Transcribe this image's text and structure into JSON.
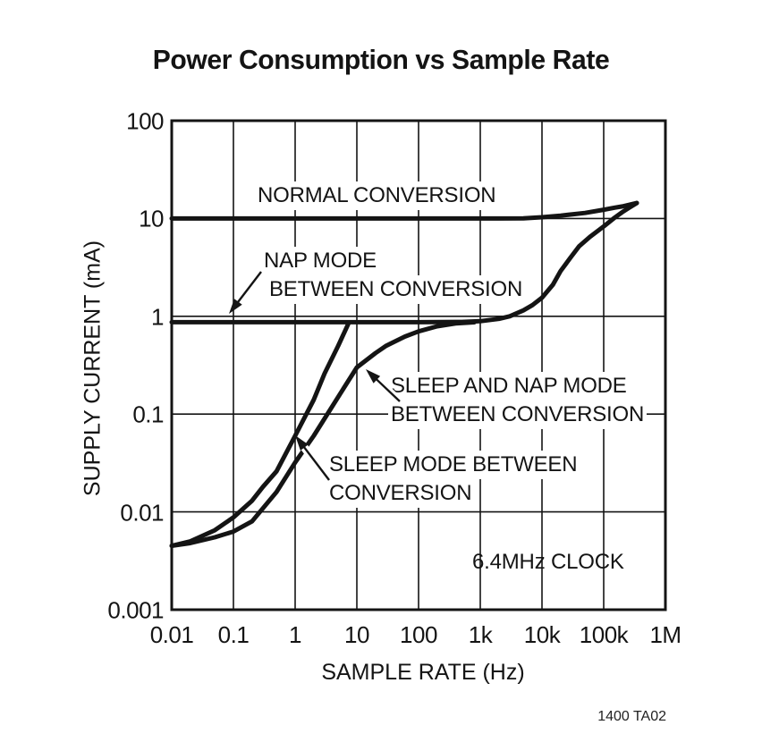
{
  "title": "Power Consumption vs Sample Rate",
  "figure_note": "1400 TA02",
  "colors": {
    "ink": "#141414",
    "background": "#ffffff"
  },
  "axes": {
    "x": {
      "label": "SAMPLE RATE (Hz)",
      "scale": "log",
      "ticks": [
        "0.01",
        "0.1",
        "1",
        "10",
        "100",
        "1k",
        "10k",
        "100k",
        "1M"
      ]
    },
    "y": {
      "label": "SUPPLY CURRENT (mA)",
      "scale": "log",
      "ticks": [
        "100",
        "10",
        "1",
        "0.1",
        "0.01",
        "0.001"
      ]
    }
  },
  "annotations": {
    "normal": {
      "lines": [
        "NORMAL CONVERSION"
      ]
    },
    "nap": {
      "lines": [
        "NAP MODE",
        "BETWEEN CONVERSION"
      ]
    },
    "sleep_nap": {
      "lines": [
        "SLEEP AND NAP MODE",
        "BETWEEN CONVERSION"
      ]
    },
    "sleep": {
      "lines": [
        "SLEEP MODE BETWEEN",
        "CONVERSION"
      ]
    },
    "clock": {
      "text": "6.4MHz CLOCK"
    }
  },
  "chart_data": {
    "type": "line",
    "title": "Power Consumption vs Sample Rate",
    "xlabel": "SAMPLE RATE (Hz)",
    "ylabel": "SUPPLY CURRENT (mA)",
    "x_scale": "log",
    "y_scale": "log",
    "xlim": [
      0.01,
      1000000
    ],
    "ylim": [
      0.001,
      100
    ],
    "grid": true,
    "units": {
      "x": "Hz",
      "y": "mA"
    },
    "series": [
      {
        "name": "NORMAL CONVERSION",
        "points": [
          [
            0.01,
            10
          ],
          [
            1,
            10
          ],
          [
            100,
            10
          ],
          [
            2000,
            10
          ],
          [
            5000,
            10.05
          ],
          [
            10000,
            10.3
          ],
          [
            20000,
            10.7
          ],
          [
            50000,
            11.4
          ],
          [
            100000,
            12.3
          ],
          [
            150000,
            12.9
          ],
          [
            200000,
            13.3
          ],
          [
            260000,
            13.8
          ],
          [
            344000,
            14.4
          ]
        ]
      },
      {
        "name": "NAP MODE BETWEEN CONVERSION",
        "points": [
          [
            0.01,
            0.87
          ],
          [
            1,
            0.87
          ],
          [
            100,
            0.87
          ],
          [
            500,
            0.875
          ],
          [
            1000,
            0.89
          ],
          [
            2000,
            0.94
          ],
          [
            3000,
            1.0
          ],
          [
            5000,
            1.15
          ],
          [
            7000,
            1.3
          ],
          [
            10000,
            1.55
          ],
          [
            15000,
            2.1
          ],
          [
            20000,
            2.9
          ],
          [
            30000,
            4.1
          ],
          [
            40000,
            5.2
          ],
          [
            60000,
            6.5
          ],
          [
            100000,
            8.3
          ],
          [
            150000,
            10.2
          ],
          [
            200000,
            11.6
          ],
          [
            260000,
            12.9
          ],
          [
            344000,
            14.4
          ]
        ]
      },
      {
        "name": "SLEEP AND NAP MODE BETWEEN CONVERSION",
        "points": [
          [
            0.01,
            0.0045
          ],
          [
            0.02,
            0.0048
          ],
          [
            0.05,
            0.0055
          ],
          [
            0.1,
            0.0063
          ],
          [
            0.2,
            0.008
          ],
          [
            0.5,
            0.016
          ],
          [
            1,
            0.032
          ],
          [
            2,
            0.06
          ],
          [
            5,
            0.15
          ],
          [
            10,
            0.3
          ],
          [
            20,
            0.42
          ],
          [
            30,
            0.5
          ],
          [
            60,
            0.62
          ],
          [
            100,
            0.7
          ],
          [
            200,
            0.79
          ],
          [
            400,
            0.845
          ],
          [
            800,
            0.868
          ]
        ]
      },
      {
        "name": "SLEEP MODE BETWEEN CONVERSION",
        "points": [
          [
            0.01,
            0.0045
          ],
          [
            0.02,
            0.005
          ],
          [
            0.05,
            0.0065
          ],
          [
            0.1,
            0.0088
          ],
          [
            0.2,
            0.013
          ],
          [
            0.3,
            0.018
          ],
          [
            0.5,
            0.026
          ],
          [
            1,
            0.06
          ],
          [
            2,
            0.14
          ],
          [
            3,
            0.26
          ],
          [
            5,
            0.5
          ],
          [
            7.4,
            0.86
          ]
        ]
      }
    ],
    "clock_note": "6.4MHz CLOCK"
  }
}
